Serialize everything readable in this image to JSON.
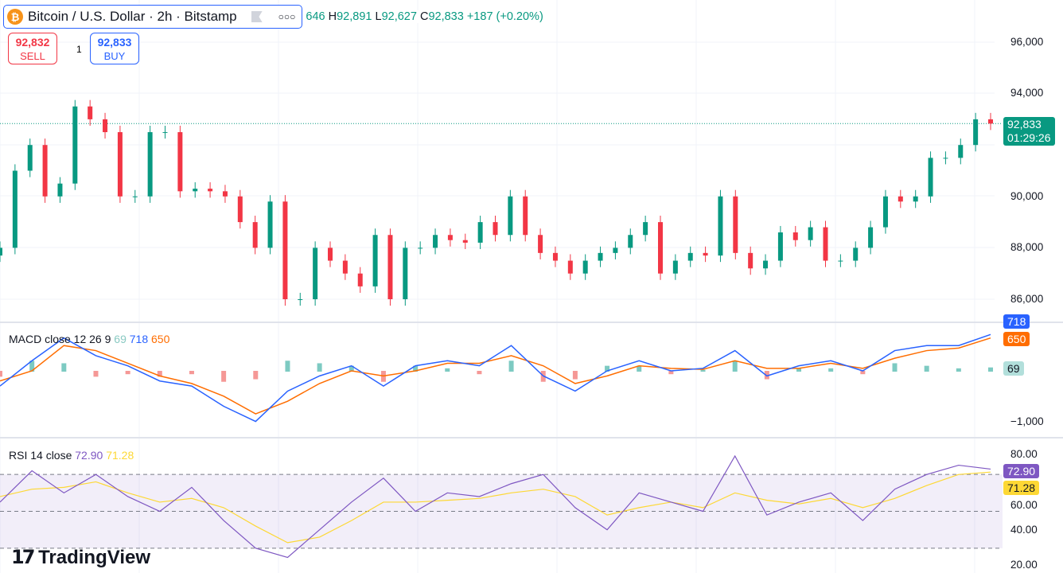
{
  "header": {
    "symbol": "Bitcoin / U.S. Dollar · 2h · Bitstamp",
    "open_partial": "646",
    "h_label": "H",
    "high": "92,891",
    "l_label": "L",
    "low": "92,627",
    "c_label": "C",
    "close": "92,833",
    "change": "+187 (+0.20%)"
  },
  "trade": {
    "sell_price": "92,832",
    "sell_label": "SELL",
    "qty": "1",
    "buy_price": "92,833",
    "buy_label": "BUY"
  },
  "colors": {
    "up": "#089981",
    "down": "#f23645",
    "macd": "#2962ff",
    "signal": "#ff6d00",
    "rsi": "#7e57c2",
    "rsi_ma": "#fdd835"
  },
  "price_axis": [
    "96,000",
    "94,000",
    "92,000",
    "90,000",
    "88,000",
    "86,000"
  ],
  "last_price": {
    "value": "92,833",
    "countdown": "01:29:26"
  },
  "macd": {
    "label": "MACD close 12 26 9",
    "hist": "69",
    "macd": "718",
    "signal": "650",
    "axis": "−1,000"
  },
  "rsi": {
    "label": "RSI 14 close",
    "value": "72.90",
    "ma": "71.28",
    "axis": [
      "80.00",
      "60.00",
      "40.00",
      "20.00"
    ]
  },
  "logo": "TradingView",
  "chart_data": {
    "type": "candlestick",
    "closes": [
      88000,
      91000,
      92000,
      90000,
      90500,
      93500,
      93000,
      92500,
      90000,
      90000,
      92500,
      92500,
      90200,
      90300,
      90200,
      90000,
      89000,
      88000,
      89800,
      86000,
      86000,
      88000,
      87500,
      87000,
      86500,
      88500,
      86000,
      88000,
      88000,
      88500,
      88300,
      88200,
      89000,
      88500,
      90000,
      88500,
      87800,
      87500,
      87000,
      87500,
      87800,
      88000,
      88500,
      89000,
      87000,
      87500,
      87800,
      87700,
      90000,
      87800,
      87200,
      87500,
      88600,
      88300,
      88800,
      87500,
      87500,
      88000,
      88800,
      90000,
      89800,
      90000,
      91500,
      91500,
      92000,
      93000,
      92833
    ],
    "macd_line": [
      -300,
      200,
      650,
      300,
      100,
      -200,
      -300,
      -700,
      -1000,
      -400,
      -100,
      100,
      -300,
      100,
      200,
      100,
      500,
      -100,
      -400,
      0,
      200,
      0,
      50,
      400,
      -100,
      100,
      200,
      0,
      400,
      500,
      500,
      718
    ],
    "signal_line": [
      -200,
      0,
      500,
      400,
      150,
      -100,
      -250,
      -500,
      -850,
      -600,
      -250,
      0,
      -100,
      0,
      150,
      150,
      300,
      100,
      -250,
      -100,
      100,
      50,
      30,
      200,
      50,
      50,
      150,
      50,
      250,
      400,
      450,
      650
    ],
    "rsi_values": [
      55,
      72,
      60,
      70,
      58,
      50,
      63,
      45,
      30,
      25,
      40,
      55,
      68,
      50,
      60,
      58,
      65,
      70,
      52,
      40,
      60,
      55,
      50,
      80,
      48,
      55,
      60,
      45,
      62,
      70,
      75,
      72.9
    ],
    "rsi_ma": [
      58,
      62,
      63,
      66,
      60,
      55,
      57,
      52,
      42,
      33,
      36,
      45,
      55,
      55,
      56,
      57,
      60,
      62,
      58,
      48,
      52,
      55,
      52,
      60,
      56,
      54,
      57,
      52,
      57,
      64,
      70,
      71.28
    ],
    "ylim": [
      85000,
      96500
    ]
  }
}
